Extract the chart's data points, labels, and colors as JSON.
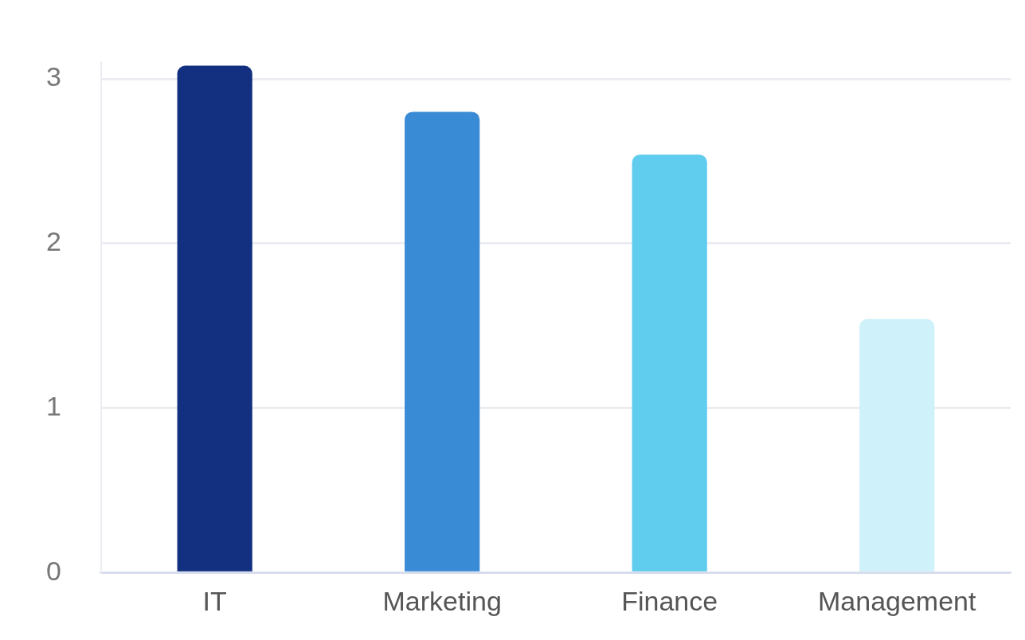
{
  "chart_data": {
    "type": "bar",
    "categories": [
      "IT",
      "Marketing",
      "Finance",
      "Management"
    ],
    "values": [
      3.08,
      2.8,
      2.54,
      1.54
    ],
    "colors": [
      "#12307f",
      "#3a8bd6",
      "#60cdee",
      "#cff1fa"
    ],
    "ylim": [
      0,
      3.1
    ],
    "yticks": [
      0,
      1,
      2,
      3
    ],
    "grid": "y",
    "legend": false
  }
}
